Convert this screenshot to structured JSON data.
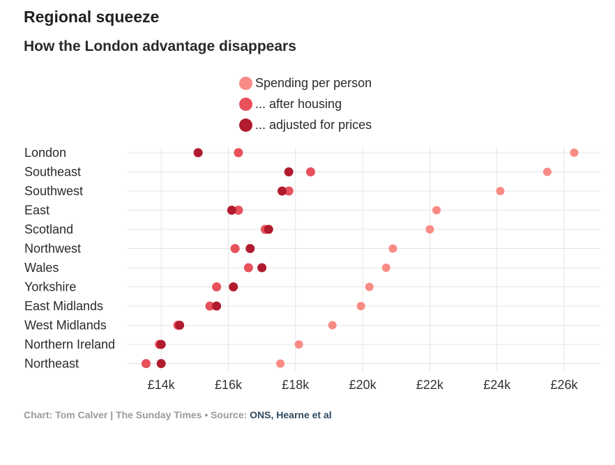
{
  "title": "Regional squeeze",
  "subtitle": "How the London advantage disappears",
  "legend": [
    {
      "label": "Spending per person",
      "color": "#f98b85"
    },
    {
      "label": "... after housing",
      "color": "#e8505b"
    },
    {
      "label": "... adjusted for prices",
      "color": "#b01b2e"
    }
  ],
  "footer": {
    "credit": "Chart: Tom Calver | The Sunday Times",
    "separator": " • ",
    "source_label": "Source: ",
    "source_link": "ONS, Hearne et al"
  },
  "chart_data": {
    "type": "scatter",
    "title": "Regional squeeze",
    "subtitle": "How the London advantage disappears",
    "xlabel": "",
    "ylabel": "",
    "xlim": [
      13000,
      27100
    ],
    "x_ticks": [
      14000,
      16000,
      18000,
      20000,
      22000,
      24000,
      26000
    ],
    "x_tick_labels": [
      "£14k",
      "£16k",
      "£18k",
      "£20k",
      "£22k",
      "£24k",
      "£26k"
    ],
    "grid": true,
    "legend_position": "top-center",
    "categories": [
      "London",
      "Southeast",
      "Southwest",
      "East",
      "Scotland",
      "Northwest",
      "Wales",
      "Yorkshire",
      "East Midlands",
      "West Midlands",
      "Northern Ireland",
      "Northeast"
    ],
    "series": [
      {
        "name": "Spending per person",
        "color": "#f98b85",
        "values": [
          26300,
          25500,
          24100,
          22200,
          22000,
          20900,
          20700,
          20200,
          19950,
          19100,
          18100,
          17550
        ]
      },
      {
        "name": "... after housing",
        "color": "#e8505b",
        "values": [
          16300,
          18450,
          17800,
          16300,
          17100,
          16200,
          16600,
          15650,
          15450,
          14500,
          13950,
          13550
        ]
      },
      {
        "name": "... adjusted for prices",
        "color": "#b01b2e",
        "values": [
          15100,
          17800,
          17600,
          16100,
          17200,
          16650,
          17000,
          16150,
          15650,
          14550,
          14000,
          14000
        ]
      }
    ]
  }
}
